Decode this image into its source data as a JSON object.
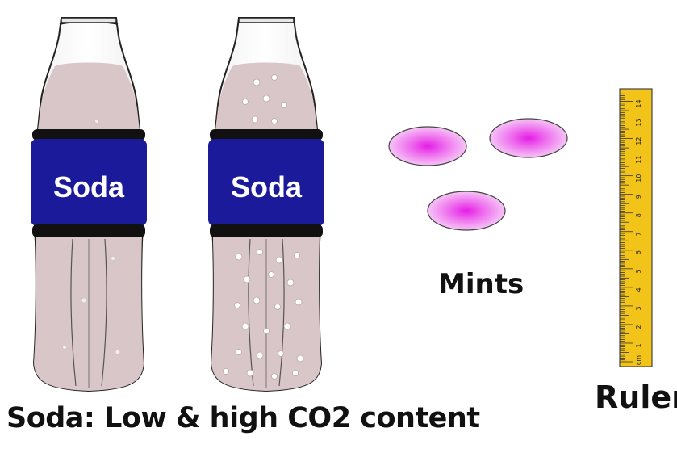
{
  "bottles": [
    {
      "label": "Soda",
      "co2": "low"
    },
    {
      "label": "Soda",
      "co2": "high"
    }
  ],
  "mints_label": "Mints",
  "ruler_label": "Ruler",
  "ruler_unit": "cm",
  "ruler_numbers": [
    "1",
    "2",
    "3",
    "4",
    "5",
    "6",
    "7",
    "8",
    "9",
    "10",
    "11",
    "12",
    "13",
    "14"
  ],
  "caption": "Soda: Low & high CO2 content",
  "colors": {
    "soda_liquid": "#d9c6c8",
    "label_band": "#1a1a9a",
    "mint": "#e040e0",
    "ruler": "#f2c419"
  }
}
